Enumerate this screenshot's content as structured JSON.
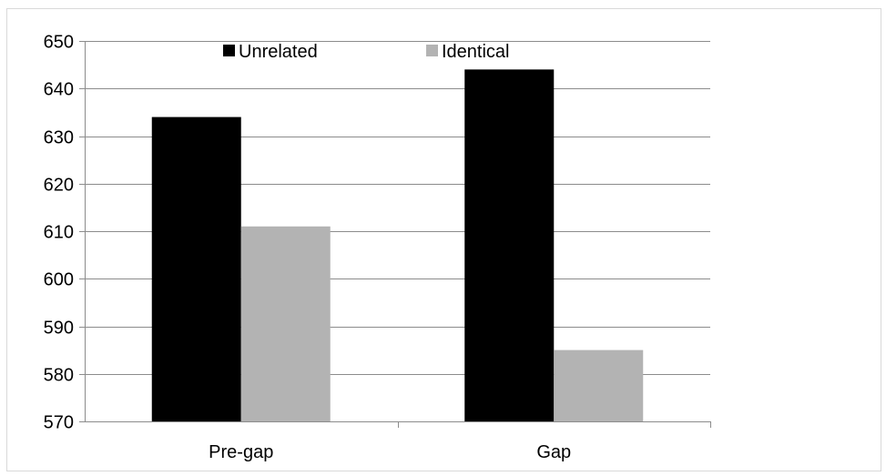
{
  "chart_data": {
    "type": "bar",
    "title": "",
    "xlabel": "",
    "ylabel": "",
    "categories": [
      "Pre-gap",
      "Gap"
    ],
    "series": [
      {
        "name": "Unrelated",
        "values": [
          634,
          644
        ],
        "color": "#000000"
      },
      {
        "name": "Identical",
        "values": [
          611,
          585
        ],
        "color": "#b3b3b3"
      }
    ],
    "ylim": [
      570,
      650
    ],
    "yticks": [
      570,
      580,
      590,
      600,
      610,
      620,
      630,
      640,
      650
    ],
    "grid": true,
    "legend_position": "top"
  }
}
